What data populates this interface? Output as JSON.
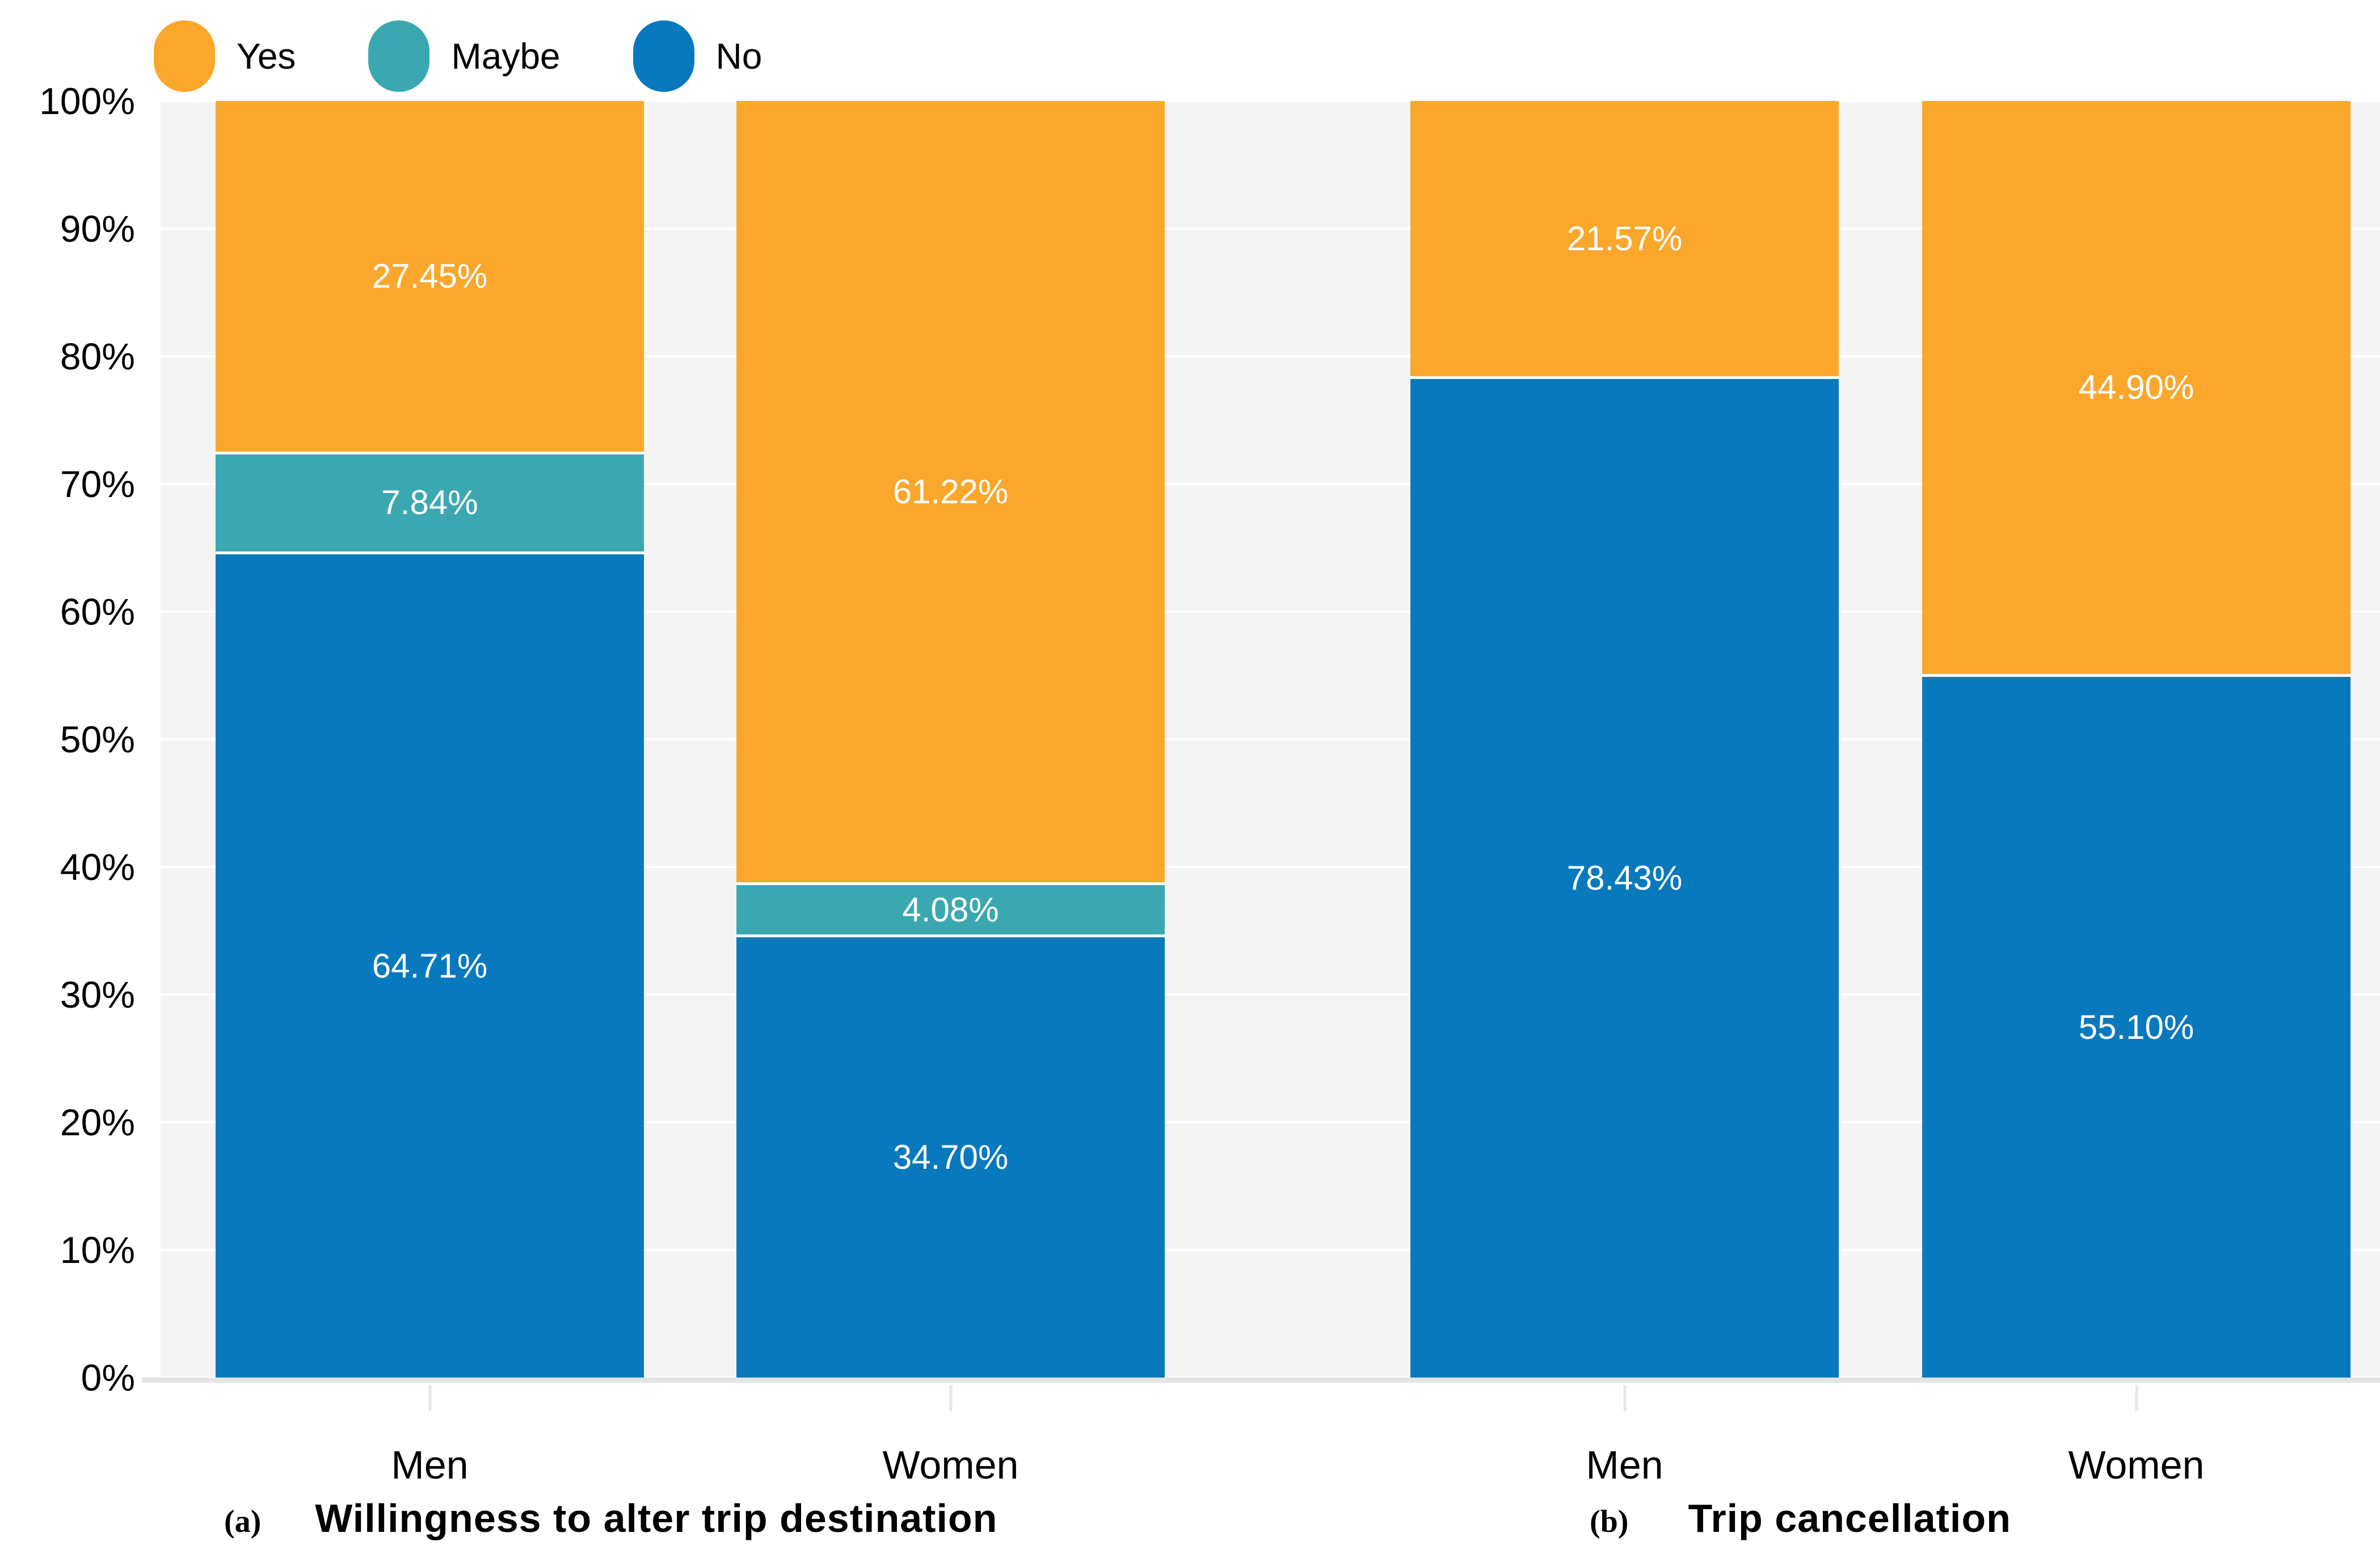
{
  "figure": {
    "legend": {
      "position": "top-left",
      "items": [
        {
          "label": "Yes",
          "color": "#FBA72C"
        },
        {
          "label": "Maybe",
          "color": "#3BA8B1"
        },
        {
          "label": "No",
          "color": "#0879BD"
        }
      ]
    },
    "y_axis": {
      "tick_values": [
        0,
        10,
        20,
        30,
        40,
        50,
        60,
        70,
        80,
        90,
        100
      ],
      "tick_labels": [
        "0%",
        "10%",
        "20%",
        "30%",
        "40%",
        "50%",
        "60%",
        "70%",
        "80%",
        "90%",
        "100%"
      ]
    },
    "plot_background_color": "#f4f4f4",
    "gridline_color": "#ffffff",
    "axis_line_color": "#e4e4e4",
    "data_label_color": "#ffffff"
  },
  "chart_data": {
    "type": "bar",
    "stacked": true,
    "orientation": "vertical",
    "value_unit": "percent",
    "ylim": [
      0,
      100
    ],
    "y_tick_step": 10,
    "grid": "horizontal",
    "legend_position": "top-left",
    "series_names": [
      "Yes",
      "Maybe",
      "No"
    ],
    "series_colors": {
      "Yes": "#FBA72C",
      "Maybe": "#3BA8B1",
      "No": "#0879BD"
    },
    "panels": [
      {
        "tag": "(a)",
        "caption": "Willingness to alter trip destination",
        "categories": [
          "Men",
          "Women"
        ],
        "series": [
          {
            "name": "Yes",
            "values": [
              27.45,
              61.22
            ]
          },
          {
            "name": "Maybe",
            "values": [
              7.84,
              4.08
            ]
          },
          {
            "name": "No",
            "values": [
              64.71,
              34.7
            ]
          }
        ]
      },
      {
        "tag": "(b)",
        "caption": "Trip cancellation",
        "categories": [
          "Men",
          "Women"
        ],
        "series": [
          {
            "name": "Yes",
            "values": [
              21.57,
              44.9
            ]
          },
          {
            "name": "No",
            "values": [
              78.43,
              55.1
            ]
          }
        ]
      }
    ],
    "bars": [
      {
        "panel": "(a)",
        "category": "Men",
        "segments": [
          {
            "series": "Yes",
            "value": 27.45,
            "label": "27.45%"
          },
          {
            "series": "Maybe",
            "value": 7.84,
            "label": "7.84%"
          },
          {
            "series": "No",
            "value": 64.71,
            "label": "64.71%"
          }
        ]
      },
      {
        "panel": "(a)",
        "category": "Women",
        "segments": [
          {
            "series": "Yes",
            "value": 61.22,
            "label": "61.22%"
          },
          {
            "series": "Maybe",
            "value": 4.08,
            "label": "4.08%"
          },
          {
            "series": "No",
            "value": 34.7,
            "label": "34.70%"
          }
        ]
      },
      {
        "panel": "(b)",
        "category": "Men",
        "segments": [
          {
            "series": "Yes",
            "value": 21.57,
            "label": "21.57%"
          },
          {
            "series": "No",
            "value": 78.43,
            "label": "78.43%"
          }
        ]
      },
      {
        "panel": "(b)",
        "category": "Women",
        "segments": [
          {
            "series": "Yes",
            "value": 44.9,
            "label": "44.90%"
          },
          {
            "series": "No",
            "value": 55.1,
            "label": "55.10%"
          }
        ]
      }
    ]
  }
}
